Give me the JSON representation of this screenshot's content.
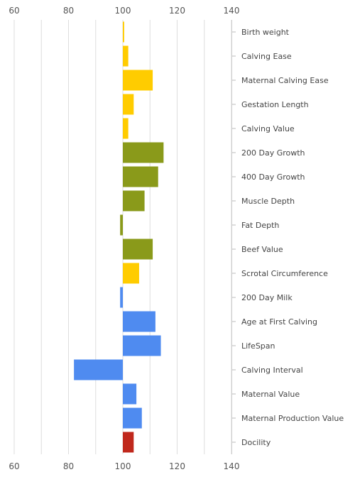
{
  "chart_data": {
    "type": "bar",
    "orientation": "horizontal",
    "baseline": 100,
    "xlim": [
      60,
      140
    ],
    "xticks": [
      60,
      80,
      100,
      120,
      140
    ],
    "grid": true,
    "categories": [
      "Birth weight",
      "Calving Ease",
      "Maternal Calving Ease",
      "Gestation Length",
      "Calving Value",
      "200 Day Growth",
      "400 Day Growth",
      "Muscle Depth",
      "Fat Depth",
      "Beef Value",
      "Scrotal Circumference",
      "200 Day Milk",
      "Age at First Calving",
      "LifeSpan",
      "Calving Interval",
      "Maternal Value",
      "Maternal Production Value",
      "Docility"
    ],
    "values": [
      100.5,
      102,
      111,
      104,
      102,
      115,
      113,
      108,
      99,
      111,
      106,
      99,
      112,
      114,
      82,
      105,
      107,
      104
    ],
    "colors": [
      "#ffcc00",
      "#ffcc00",
      "#ffcc00",
      "#ffcc00",
      "#ffcc00",
      "#8a9a1a",
      "#8a9a1a",
      "#8a9a1a",
      "#8a9a1a",
      "#8a9a1a",
      "#ffcc00",
      "#4f8bf0",
      "#4f8bf0",
      "#4f8bf0",
      "#4f8bf0",
      "#4f8bf0",
      "#4f8bf0",
      "#c0281c"
    ],
    "title": "",
    "xlabel": "",
    "ylabel": ""
  }
}
